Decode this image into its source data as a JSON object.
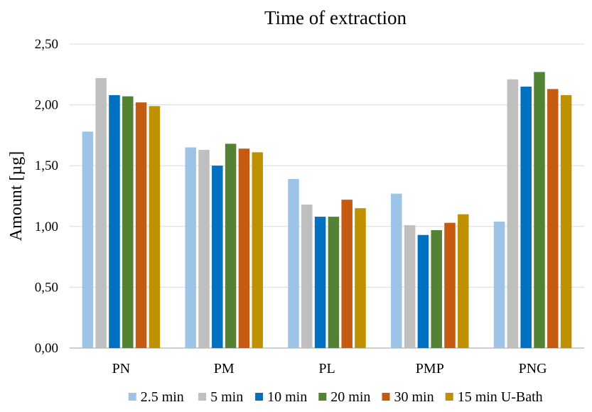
{
  "chart_data": {
    "type": "bar",
    "title": "Time of extraction",
    "xlabel": "",
    "ylabel": "Amount [µg]",
    "ylim": [
      0,
      2.5
    ],
    "yticks": [
      "0,00",
      "0,50",
      "1,00",
      "1,50",
      "2,00",
      "2,50"
    ],
    "ytick_values": [
      0,
      0.5,
      1,
      1.5,
      2,
      2.5
    ],
    "grid": true,
    "legend_position": "bottom",
    "categories": [
      "PN",
      "PM",
      "PL",
      "PMP",
      "PNG"
    ],
    "series": [
      {
        "name": "2.5 min",
        "color": "#9dc3e6",
        "values": [
          1.78,
          1.65,
          1.39,
          1.27,
          1.04
        ]
      },
      {
        "name": "5 min",
        "color": "#bfbfbf",
        "values": [
          2.22,
          1.63,
          1.18,
          1.01,
          2.21
        ]
      },
      {
        "name": "10 min",
        "color": "#0070c0",
        "values": [
          2.08,
          1.5,
          1.08,
          0.93,
          2.15
        ]
      },
      {
        "name": "20 min",
        "color": "#548235",
        "values": [
          2.07,
          1.68,
          1.08,
          0.97,
          2.27
        ]
      },
      {
        "name": "30 min",
        "color": "#c55a11",
        "values": [
          2.02,
          1.64,
          1.22,
          1.03,
          2.13
        ]
      },
      {
        "name": "15 min U-Bath",
        "color": "#bf9000",
        "values": [
          1.99,
          1.61,
          1.15,
          1.1,
          2.08
        ]
      }
    ]
  }
}
